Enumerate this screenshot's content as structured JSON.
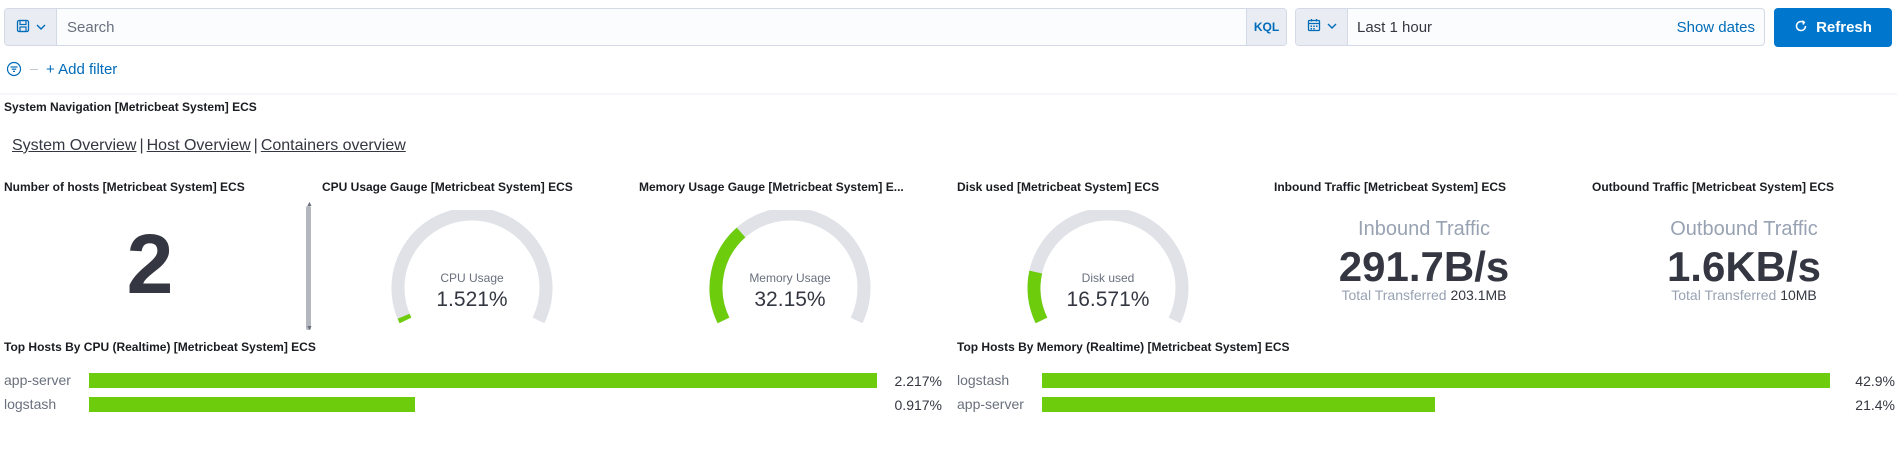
{
  "query_bar": {
    "search_placeholder": "Search",
    "language": "KQL",
    "time_range": "Last 1 hour",
    "show_dates": "Show dates",
    "refresh": "Refresh",
    "add_filter": "+ Add filter"
  },
  "navigation": {
    "title": "System Navigation [Metricbeat System] ECS",
    "links": [
      "System Overview",
      "Host Overview",
      "Containers overview"
    ],
    "separator": "|"
  },
  "panels": {
    "hosts": {
      "title": "Number of hosts [Metricbeat System] ECS",
      "value": "2"
    },
    "cpu_gauge": {
      "title": "CPU Usage Gauge [Metricbeat System] ECS",
      "label": "CPU Usage",
      "value": "1.521%",
      "fraction": 0.01521
    },
    "memory_gauge": {
      "title": "Memory Usage Gauge [Metricbeat System] E...",
      "label": "Memory Usage",
      "value": "32.15%",
      "fraction": 0.3215
    },
    "disk_gauge": {
      "title": "Disk used [Metricbeat System] ECS",
      "label": "Disk used",
      "value": "16.571%",
      "fraction": 0.16571
    },
    "inbound": {
      "title": "Inbound Traffic [Metricbeat System] ECS",
      "heading": "Inbound Traffic",
      "value": "291.7B/s",
      "total_label": "Total Transferred",
      "total_value": "203.1MB"
    },
    "outbound": {
      "title": "Outbound Traffic [Metricbeat System] ECS",
      "heading": "Outbound Traffic",
      "value": "1.6KB/s",
      "total_label": "Total Transferred",
      "total_value": "10MB"
    },
    "top_cpu": {
      "title": "Top Hosts By CPU (Realtime) [Metricbeat System] ECS",
      "rows": [
        {
          "host": "app-server",
          "label": "2.217%",
          "value": 2.217
        },
        {
          "host": "logstash",
          "label": "0.917%",
          "value": 0.917
        }
      ]
    },
    "top_memory": {
      "title": "Top Hosts By Memory (Realtime) [Metricbeat System] ECS",
      "rows": [
        {
          "host": "logstash",
          "label": "42.9%",
          "value": 42.9
        },
        {
          "host": "app-server",
          "label": "21.4%",
          "value": 21.4
        }
      ]
    }
  },
  "colors": {
    "accent": "#0077cc",
    "link": "#006bb8",
    "gauge_fill": "#6dcc0b",
    "gauge_track": "#e0e2e7",
    "bar": "#6dcc0b"
  },
  "icons": [
    "save-icon",
    "chevron-down-icon",
    "calendar-icon",
    "refresh-icon",
    "filter-icon"
  ]
}
